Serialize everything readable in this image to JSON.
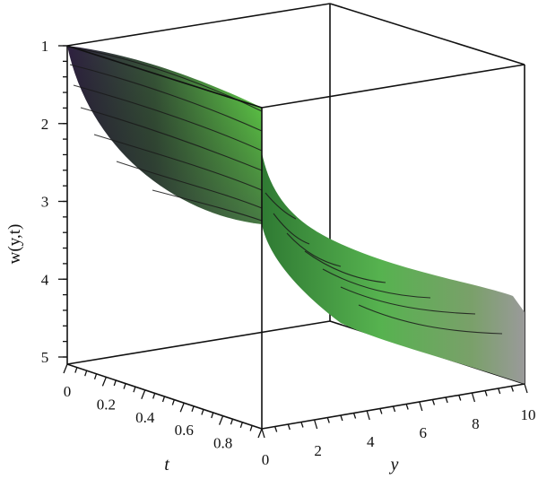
{
  "chart_data": {
    "type": "surface3d",
    "zlabel": "w(y,t)",
    "xlabel": "t",
    "ylabel": "y",
    "z_ticks": [
      "1",
      "2",
      "3",
      "4",
      "5"
    ],
    "t_ticks": [
      "0",
      "0.2",
      "0.4",
      "0.6",
      "0.8"
    ],
    "y_ticks": [
      "0",
      "2",
      "4",
      "6",
      "8",
      "10"
    ],
    "t_range": [
      0,
      1
    ],
    "y_range": [
      0,
      10
    ],
    "z_range": [
      1,
      5
    ],
    "z_inverted": true,
    "surface_colors": {
      "top": "#5fe04a",
      "mid": "#3f8f3e",
      "dark": "#3b2a55",
      "end": "#9a9a9a"
    },
    "w_profile": {
      "y": [
        0,
        1,
        2,
        3,
        4,
        5,
        6,
        7,
        8,
        9,
        10
      ],
      "w_at_t0": [
        1.0,
        1.5,
        2.2,
        2.8,
        3.2,
        3.45,
        3.65,
        3.85,
        4.05,
        4.3,
        5.0
      ],
      "w_at_t1": [
        1.0,
        1.9,
        2.6,
        3.0,
        3.3,
        3.5,
        3.7,
        3.9,
        4.15,
        4.4,
        5.0
      ]
    }
  }
}
